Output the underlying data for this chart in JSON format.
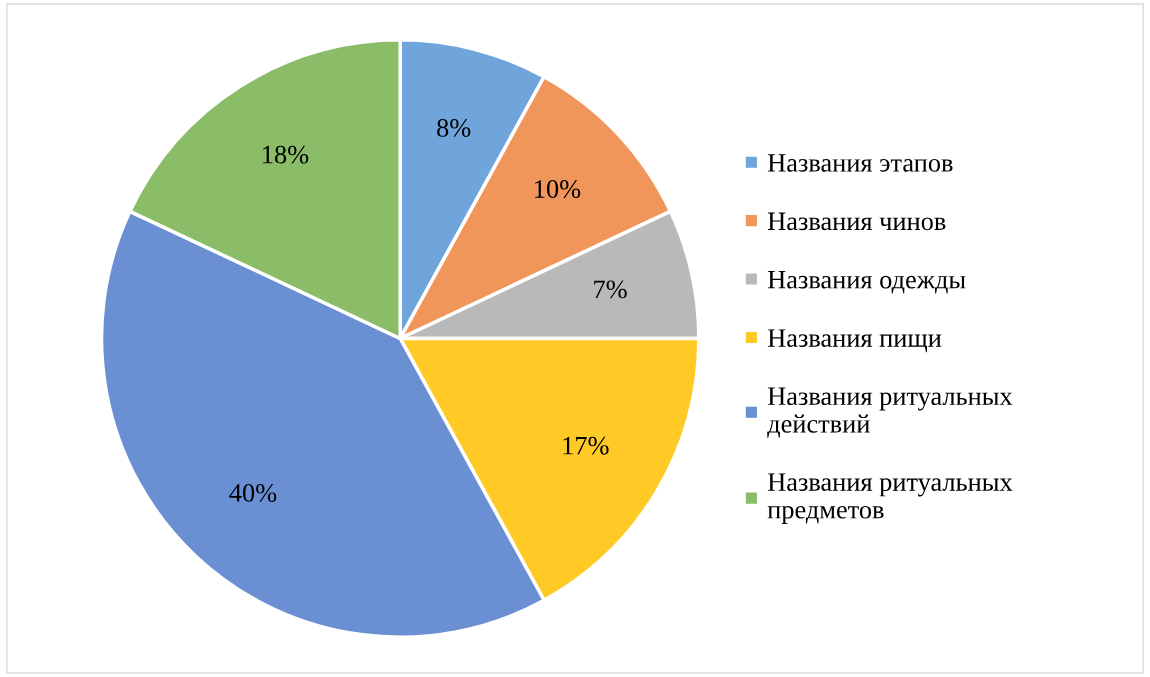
{
  "chart_data": {
    "type": "pie",
    "categories": [
      "Названия этапов",
      "Названия чинов",
      "Названия одежды",
      "Названия пищи",
      "Названия ритуальных\nдействий",
      "Названия ритуальных\nпредметов"
    ],
    "values": [
      8,
      10,
      7,
      17,
      40,
      18
    ],
    "colors": [
      "#6fa5db",
      "#f0965a",
      "#b9b9b9",
      "#ffc926",
      "#6a8fd2",
      "#8bbd68"
    ],
    "value_labels": [
      "8%",
      "10%",
      "7%",
      "17%",
      "40%",
      "18%"
    ],
    "legend": "right"
  }
}
